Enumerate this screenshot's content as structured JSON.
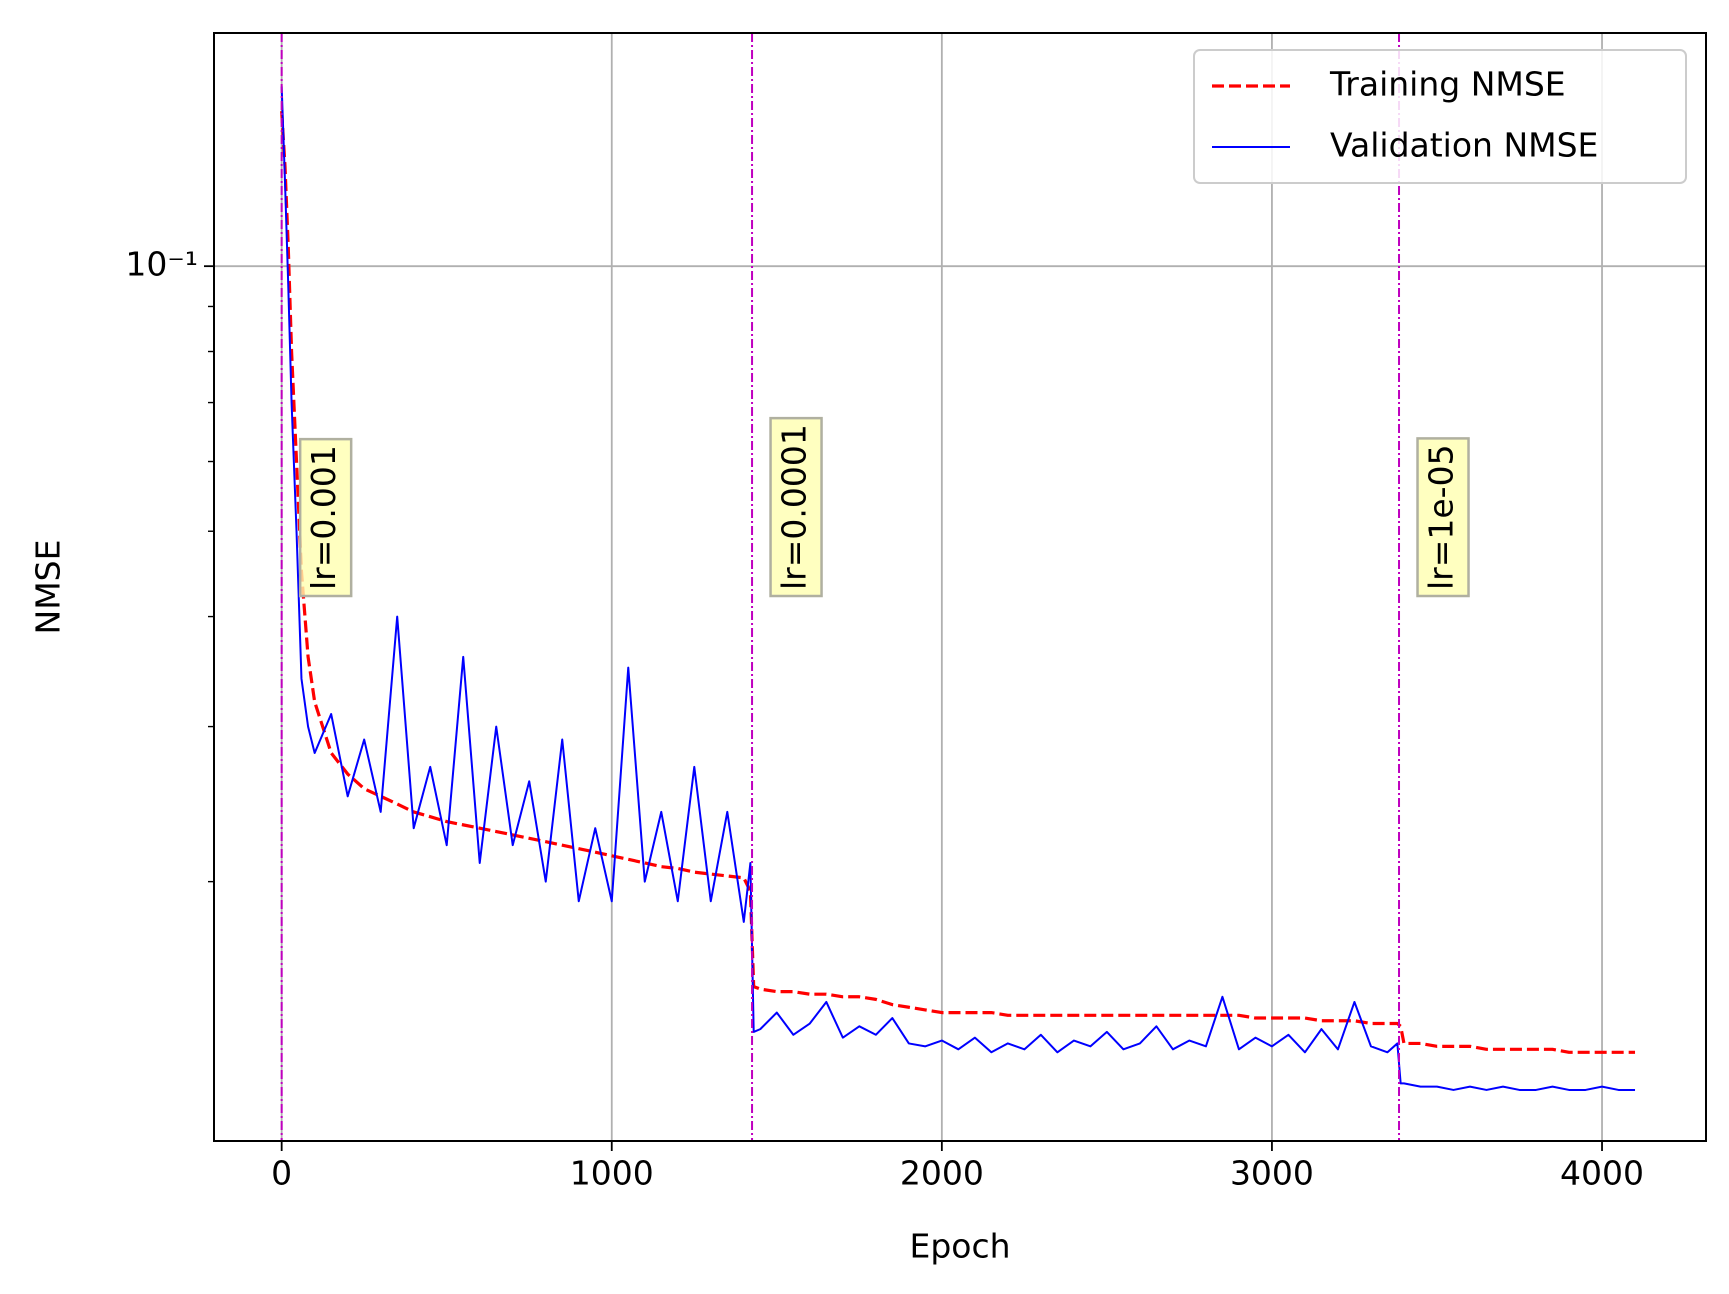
{
  "chart_data": {
    "type": "line",
    "x_label": "Epoch",
    "y_label": "NMSE",
    "log_y": true,
    "grid": true,
    "legend": "upper right",
    "xlim": [
      -205,
      4315
    ],
    "xticks": [
      0,
      1000,
      2000,
      3000,
      4000
    ],
    "ylim": [
      0.01015,
      0.184
    ],
    "yticks": [
      {
        "value": 0.1,
        "label": "10⁻¹"
      }
    ],
    "yminorticks": [
      0.02,
      0.03,
      0.04,
      0.05,
      0.06,
      0.07,
      0.08,
      0.09
    ],
    "x": [
      0,
      10,
      20,
      30,
      45,
      60,
      80,
      100,
      150,
      200,
      250,
      300,
      350,
      400,
      450,
      500,
      550,
      600,
      650,
      700,
      750,
      800,
      850,
      900,
      950,
      1000,
      1050,
      1100,
      1150,
      1200,
      1250,
      1300,
      1350,
      1400,
      1420,
      1430,
      1450,
      1500,
      1550,
      1600,
      1650,
      1700,
      1750,
      1800,
      1850,
      1900,
      1950,
      2000,
      2050,
      2100,
      2150,
      2200,
      2250,
      2300,
      2350,
      2400,
      2450,
      2500,
      2550,
      2600,
      2650,
      2700,
      2750,
      2800,
      2850,
      2900,
      2950,
      3000,
      3050,
      3100,
      3150,
      3200,
      3250,
      3300,
      3350,
      3380,
      3390,
      3400,
      3450,
      3500,
      3550,
      3600,
      3650,
      3700,
      3750,
      3800,
      3850,
      3900,
      3950,
      4000,
      4050,
      4100
    ],
    "series": [
      {
        "name": "Training NMSE",
        "color": "#ff0000",
        "dash": true,
        "values": [
          0.15,
          0.13,
          0.105,
          0.08,
          0.06,
          0.045,
          0.036,
          0.032,
          0.028,
          0.0265,
          0.0255,
          0.025,
          0.0245,
          0.024,
          0.0237,
          0.0234,
          0.0232,
          0.023,
          0.0228,
          0.0226,
          0.0224,
          0.0222,
          0.022,
          0.0218,
          0.0216,
          0.0214,
          0.0212,
          0.021,
          0.0208,
          0.0207,
          0.0205,
          0.0204,
          0.0203,
          0.0202,
          0.0195,
          0.0152,
          0.0151,
          0.015,
          0.015,
          0.0149,
          0.0149,
          0.0148,
          0.0148,
          0.0147,
          0.0145,
          0.0144,
          0.0143,
          0.0142,
          0.0142,
          0.0142,
          0.0142,
          0.0141,
          0.0141,
          0.0141,
          0.0141,
          0.0141,
          0.0141,
          0.0141,
          0.0141,
          0.0141,
          0.0141,
          0.0141,
          0.0141,
          0.0141,
          0.0141,
          0.0141,
          0.014,
          0.014,
          0.014,
          0.014,
          0.0139,
          0.0139,
          0.0139,
          0.0138,
          0.0138,
          0.0138,
          0.0137,
          0.0131,
          0.0131,
          0.013,
          0.013,
          0.013,
          0.0129,
          0.0129,
          0.0129,
          0.0129,
          0.0129,
          0.0128,
          0.0128,
          0.0128,
          0.0128,
          0.0128
        ]
      },
      {
        "name": "Validation NMSE",
        "color": "#0000ff",
        "dash": false,
        "values": [
          0.16,
          0.125,
          0.095,
          0.07,
          0.05,
          0.034,
          0.03,
          0.028,
          0.031,
          0.025,
          0.029,
          0.024,
          0.04,
          0.023,
          0.027,
          0.022,
          0.036,
          0.021,
          0.03,
          0.022,
          0.026,
          0.02,
          0.029,
          0.019,
          0.023,
          0.019,
          0.035,
          0.02,
          0.024,
          0.019,
          0.027,
          0.019,
          0.024,
          0.018,
          0.021,
          0.0135,
          0.0136,
          0.0142,
          0.0134,
          0.0138,
          0.0146,
          0.0133,
          0.0137,
          0.0134,
          0.014,
          0.0131,
          0.013,
          0.0132,
          0.0129,
          0.0133,
          0.0128,
          0.0131,
          0.0129,
          0.0134,
          0.0128,
          0.0132,
          0.013,
          0.0135,
          0.0129,
          0.0131,
          0.0137,
          0.0129,
          0.0132,
          0.013,
          0.0148,
          0.0129,
          0.0133,
          0.013,
          0.0134,
          0.0128,
          0.0136,
          0.0129,
          0.0146,
          0.013,
          0.0128,
          0.0131,
          0.0118,
          0.0118,
          0.0117,
          0.0117,
          0.0116,
          0.0117,
          0.0116,
          0.0117,
          0.0116,
          0.0116,
          0.0117,
          0.0116,
          0.0116,
          0.0117,
          0.0116,
          0.0116
        ]
      }
    ],
    "annotations": [
      {
        "x": 0,
        "text": "lr=0.001"
      },
      {
        "x": 1425,
        "text": "lr=0.0001"
      },
      {
        "x": 3385,
        "text": "lr=1e-05"
      }
    ]
  }
}
